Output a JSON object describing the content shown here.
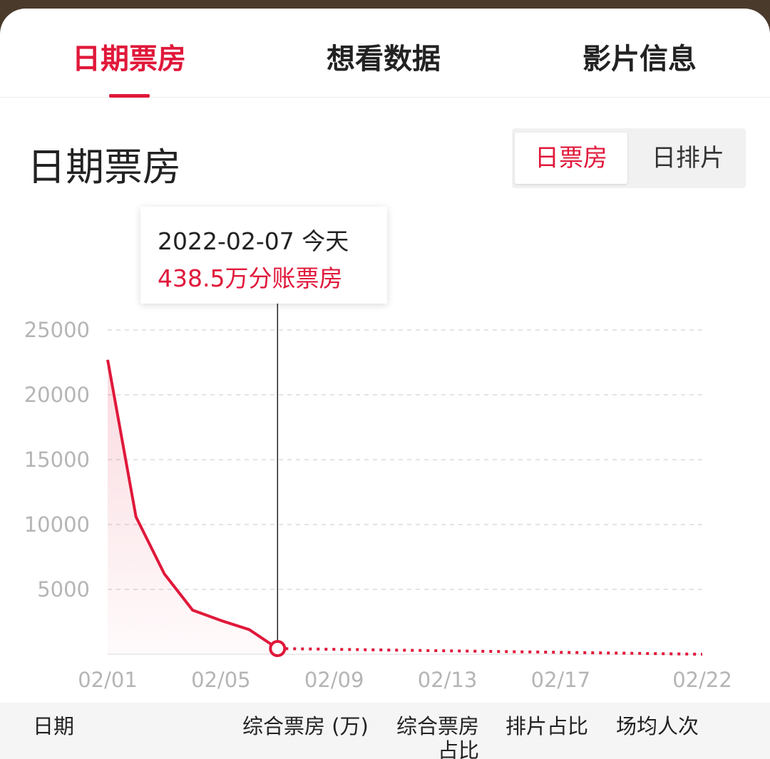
{
  "tabs": [
    {
      "label": "日期票房"
    },
    {
      "label": "想看数据"
    },
    {
      "label": "影片信息"
    }
  ],
  "section_title": "日期票房",
  "toggle": {
    "selected": "日票房",
    "other": "日排片"
  },
  "tooltip": {
    "date": "2022-02-07  今天",
    "value": "438.5万分账票房"
  },
  "colors": {
    "accent": "#e0183a",
    "text": "#222222",
    "muted": "#b5b5b5"
  },
  "table_header": {
    "col_date": "日期",
    "col_box": "综合票房 (万)",
    "col_share_line1": "综合票房",
    "col_share_line2": "占比",
    "col_sched": "排片占比",
    "col_avg": "场均人次"
  },
  "chart_data": {
    "type": "line",
    "y_ticks": [
      "25000",
      "20000",
      "15000",
      "10000",
      "5000"
    ],
    "ylim": [
      0,
      25000
    ],
    "x_ticks": [
      "02/01",
      "02/05",
      "02/09",
      "02/13",
      "02/17",
      "02/22"
    ],
    "series": [
      {
        "style": "solid",
        "x": [
          "02/01",
          "02/02",
          "02/03",
          "02/04",
          "02/05",
          "02/06",
          "02/07"
        ],
        "values": [
          22700,
          10600,
          6200,
          3400,
          2600,
          1900,
          438.5
        ]
      },
      {
        "style": "dotted",
        "x": [
          "02/07",
          "02/22"
        ],
        "values": [
          438.5,
          0
        ]
      }
    ],
    "highlight": {
      "x": "02/07",
      "value": 438.5
    },
    "grid": true
  }
}
